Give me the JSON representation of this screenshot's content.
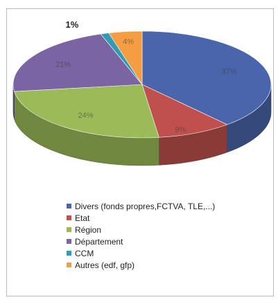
{
  "chart_data": {
    "type": "pie",
    "title": "",
    "legend_position": "bottom",
    "slices": [
      {
        "name": "Divers (fonds propres,FCTVA, TLE,...)",
        "value": 37,
        "label": "37%",
        "color": "#4a65ab"
      },
      {
        "name": "Etat",
        "value": 9,
        "label": "9%",
        "color": "#c0504d"
      },
      {
        "name": "Région",
        "value": 24,
        "label": "24%",
        "color": "#9bbb59"
      },
      {
        "name": "Département",
        "value": 21,
        "label": "21%",
        "color": "#7a64a2"
      },
      {
        "name": "CCM",
        "value": 1,
        "label": "1%",
        "color": "#2f9bb5"
      },
      {
        "name": "Autres (edf, gfp)",
        "value": 4,
        "label": "4%",
        "color": "#f59d43"
      }
    ]
  }
}
